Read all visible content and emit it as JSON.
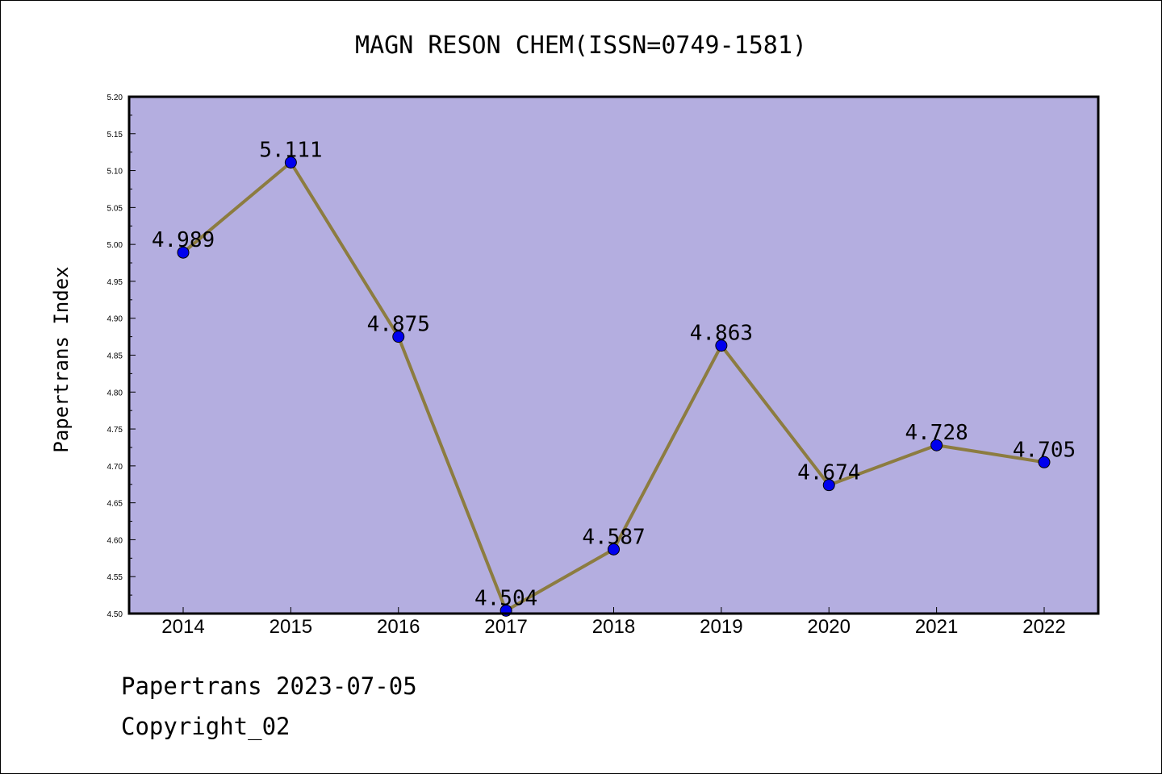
{
  "chart_data": {
    "type": "line",
    "title": "MAGN RESON CHEM(ISSN=0749-1581)",
    "xlabel": "",
    "ylabel": "Papertrans Index",
    "categories": [
      "2014",
      "2015",
      "2016",
      "2017",
      "2018",
      "2019",
      "2020",
      "2021",
      "2022"
    ],
    "series": [
      {
        "values": [
          4.989,
          5.111,
          4.875,
          4.504,
          4.587,
          4.863,
          4.674,
          4.728,
          4.705
        ]
      }
    ],
    "data_labels": [
      "4.989",
      "5.111",
      "4.875",
      "4.504",
      "4.587",
      "4.863",
      "4.674",
      "4.728",
      "4.705"
    ],
    "ylim": [
      4.5,
      5.2
    ],
    "yticks": [
      "4.50",
      "4.55",
      "4.60",
      "4.65",
      "4.70",
      "4.75",
      "4.80",
      "4.85",
      "4.90",
      "4.95",
      "5.00",
      "5.05",
      "5.10",
      "5.15",
      "5.20"
    ],
    "grid": false,
    "colors": {
      "plot_background": "#b4aee0",
      "line": "#8c7c40",
      "marker": "#0000ee"
    }
  },
  "footer": {
    "line1": "Papertrans 2023-07-05",
    "line2": "Copyright_02"
  }
}
